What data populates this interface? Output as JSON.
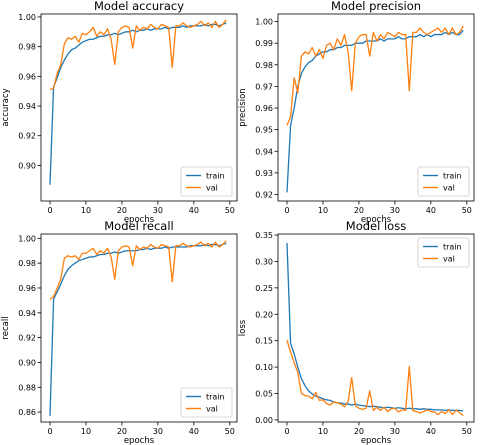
{
  "chart_data": [
    {
      "type": "line",
      "title": "Model accuracy",
      "xlabel": "epochs",
      "ylabel": "accuracy",
      "xlim": [
        -2.5,
        52
      ],
      "ylim": [
        0.876,
        1.002
      ],
      "xticks": [
        0,
        10,
        20,
        30,
        40,
        50
      ],
      "yticks": [
        0.9,
        0.92,
        0.94,
        0.96,
        0.98,
        1.0
      ],
      "ytick_labels": [
        "0.90",
        "0.92",
        "0.94",
        "0.96",
        "0.98",
        "1.00"
      ],
      "grid": false,
      "legend": "bottom-right",
      "x": [
        0,
        1,
        2,
        3,
        4,
        5,
        6,
        7,
        8,
        9,
        10,
        11,
        12,
        13,
        14,
        15,
        16,
        17,
        18,
        19,
        20,
        21,
        22,
        23,
        24,
        25,
        26,
        27,
        28,
        29,
        30,
        31,
        32,
        33,
        34,
        35,
        36,
        37,
        38,
        39,
        40,
        41,
        42,
        43,
        44,
        45,
        46,
        47,
        48,
        49
      ],
      "series": [
        {
          "name": "train",
          "color": "#1f77b4",
          "values": [
            0.887,
            0.953,
            0.959,
            0.966,
            0.971,
            0.975,
            0.978,
            0.979,
            0.981,
            0.983,
            0.984,
            0.985,
            0.985,
            0.986,
            0.987,
            0.987,
            0.988,
            0.988,
            0.989,
            0.988,
            0.989,
            0.99,
            0.99,
            0.991,
            0.99,
            0.991,
            0.991,
            0.992,
            0.991,
            0.992,
            0.992,
            0.992,
            0.993,
            0.992,
            0.993,
            0.993,
            0.993,
            0.994,
            0.993,
            0.994,
            0.994,
            0.994,
            0.994,
            0.995,
            0.994,
            0.995,
            0.995,
            0.994,
            0.995,
            0.996
          ]
        },
        {
          "name": "val",
          "color": "#ff7f0e",
          "values": [
            0.951,
            0.952,
            0.962,
            0.968,
            0.982,
            0.986,
            0.985,
            0.987,
            0.983,
            0.989,
            0.988,
            0.99,
            0.993,
            0.987,
            0.99,
            0.988,
            0.992,
            0.985,
            0.968,
            0.99,
            0.993,
            0.994,
            0.993,
            0.979,
            0.994,
            0.991,
            0.993,
            0.992,
            0.995,
            0.993,
            0.992,
            0.995,
            0.994,
            0.993,
            0.966,
            0.994,
            0.994,
            0.996,
            0.994,
            0.993,
            0.994,
            0.995,
            0.997,
            0.994,
            0.996,
            0.993,
            0.997,
            0.993,
            0.995,
            0.998
          ]
        }
      ]
    },
    {
      "type": "line",
      "title": "Model precision",
      "xlabel": "epochs",
      "ylabel": "precision",
      "xlim": [
        -2.5,
        52
      ],
      "ylim": [
        0.917,
        1.0035
      ],
      "xticks": [
        0,
        10,
        20,
        30,
        40,
        50
      ],
      "yticks": [
        0.92,
        0.93,
        0.94,
        0.95,
        0.96,
        0.97,
        0.98,
        0.99,
        1.0
      ],
      "ytick_labels": [
        "0.92",
        "0.93",
        "0.94",
        "0.95",
        "0.96",
        "0.97",
        "0.98",
        "0.99",
        "1.00"
      ],
      "grid": false,
      "legend": "bottom-right",
      "x": [
        0,
        1,
        2,
        3,
        4,
        5,
        6,
        7,
        8,
        9,
        10,
        11,
        12,
        13,
        14,
        15,
        16,
        17,
        18,
        19,
        20,
        21,
        22,
        23,
        24,
        25,
        26,
        27,
        28,
        29,
        30,
        31,
        32,
        33,
        34,
        35,
        36,
        37,
        38,
        39,
        40,
        41,
        42,
        43,
        44,
        45,
        46,
        47,
        48,
        49
      ],
      "series": [
        {
          "name": "train",
          "color": "#1f77b4",
          "values": [
            0.921,
            0.952,
            0.96,
            0.97,
            0.976,
            0.979,
            0.981,
            0.982,
            0.984,
            0.985,
            0.986,
            0.986,
            0.987,
            0.987,
            0.988,
            0.988,
            0.989,
            0.989,
            0.989,
            0.99,
            0.99,
            0.99,
            0.991,
            0.991,
            0.991,
            0.991,
            0.992,
            0.991,
            0.992,
            0.992,
            0.992,
            0.993,
            0.992,
            0.992,
            0.993,
            0.993,
            0.993,
            0.994,
            0.993,
            0.994,
            0.993,
            0.994,
            0.994,
            0.994,
            0.995,
            0.994,
            0.995,
            0.994,
            0.994,
            0.996
          ]
        },
        {
          "name": "val",
          "color": "#ff7f0e",
          "values": [
            0.952,
            0.956,
            0.974,
            0.967,
            0.984,
            0.986,
            0.985,
            0.988,
            0.984,
            0.987,
            0.983,
            0.989,
            0.99,
            0.987,
            0.992,
            0.989,
            0.994,
            0.986,
            0.968,
            0.99,
            0.993,
            0.994,
            0.994,
            0.984,
            0.995,
            0.991,
            0.994,
            0.992,
            0.995,
            0.994,
            0.993,
            0.995,
            0.994,
            0.994,
            0.968,
            0.995,
            0.995,
            0.997,
            0.995,
            0.994,
            0.995,
            0.996,
            0.997,
            0.995,
            0.997,
            0.994,
            0.997,
            0.994,
            0.995,
            0.998
          ]
        }
      ]
    },
    {
      "type": "line",
      "title": "Model recall",
      "xlabel": "epochs",
      "ylabel": "recall",
      "xlim": [
        -2.5,
        52
      ],
      "ylim": [
        0.852,
        1.0035
      ],
      "xticks": [
        0,
        10,
        20,
        30,
        40,
        50
      ],
      "yticks": [
        0.86,
        0.88,
        0.9,
        0.92,
        0.94,
        0.96,
        0.98,
        1.0
      ],
      "ytick_labels": [
        "0.86",
        "0.88",
        "0.90",
        "0.92",
        "0.94",
        "0.96",
        "0.98",
        "1.00"
      ],
      "grid": false,
      "legend": "bottom-right",
      "x": [
        0,
        1,
        2,
        3,
        4,
        5,
        6,
        7,
        8,
        9,
        10,
        11,
        12,
        13,
        14,
        15,
        16,
        17,
        18,
        19,
        20,
        21,
        22,
        23,
        24,
        25,
        26,
        27,
        28,
        29,
        30,
        31,
        32,
        33,
        34,
        35,
        36,
        37,
        38,
        39,
        40,
        41,
        42,
        43,
        44,
        45,
        46,
        47,
        48,
        49
      ],
      "series": [
        {
          "name": "train",
          "color": "#1f77b4",
          "values": [
            0.857,
            0.951,
            0.957,
            0.963,
            0.97,
            0.975,
            0.978,
            0.98,
            0.982,
            0.983,
            0.984,
            0.985,
            0.985,
            0.986,
            0.987,
            0.987,
            0.988,
            0.988,
            0.989,
            0.988,
            0.989,
            0.99,
            0.99,
            0.99,
            0.99,
            0.991,
            0.991,
            0.992,
            0.991,
            0.992,
            0.992,
            0.992,
            0.993,
            0.992,
            0.993,
            0.993,
            0.993,
            0.993,
            0.993,
            0.994,
            0.994,
            0.994,
            0.994,
            0.995,
            0.994,
            0.995,
            0.995,
            0.994,
            0.995,
            0.996
          ]
        },
        {
          "name": "val",
          "color": "#ff7f0e",
          "values": [
            0.951,
            0.953,
            0.96,
            0.967,
            0.984,
            0.986,
            0.985,
            0.986,
            0.983,
            0.988,
            0.988,
            0.99,
            0.992,
            0.987,
            0.99,
            0.988,
            0.992,
            0.985,
            0.967,
            0.99,
            0.993,
            0.994,
            0.993,
            0.978,
            0.994,
            0.991,
            0.993,
            0.992,
            0.995,
            0.993,
            0.992,
            0.995,
            0.994,
            0.993,
            0.965,
            0.994,
            0.994,
            0.996,
            0.994,
            0.993,
            0.994,
            0.995,
            0.997,
            0.994,
            0.996,
            0.993,
            0.997,
            0.993,
            0.995,
            0.998
          ]
        }
      ]
    },
    {
      "type": "line",
      "title": "Model loss",
      "xlabel": "epochs",
      "ylabel": "loss",
      "xlim": [
        -2.5,
        52
      ],
      "ylim": [
        -0.004,
        0.352
      ],
      "xticks": [
        0,
        10,
        20,
        30,
        40,
        50
      ],
      "yticks": [
        0.0,
        0.05,
        0.1,
        0.15,
        0.2,
        0.25,
        0.3,
        0.35
      ],
      "ytick_labels": [
        "0.00",
        "0.05",
        "0.10",
        "0.15",
        "0.20",
        "0.25",
        "0.30",
        "0.35"
      ],
      "grid": false,
      "legend": "top-right",
      "x": [
        0,
        1,
        2,
        3,
        4,
        5,
        6,
        7,
        8,
        9,
        10,
        11,
        12,
        13,
        14,
        15,
        16,
        17,
        18,
        19,
        20,
        21,
        22,
        23,
        24,
        25,
        26,
        27,
        28,
        29,
        30,
        31,
        32,
        33,
        34,
        35,
        36,
        37,
        38,
        39,
        40,
        41,
        42,
        43,
        44,
        45,
        46,
        47,
        48,
        49
      ],
      "series": [
        {
          "name": "train",
          "color": "#1f77b4",
          "values": [
            0.335,
            0.145,
            0.125,
            0.1,
            0.078,
            0.065,
            0.055,
            0.049,
            0.045,
            0.043,
            0.04,
            0.038,
            0.037,
            0.034,
            0.032,
            0.032,
            0.03,
            0.03,
            0.028,
            0.03,
            0.028,
            0.027,
            0.026,
            0.025,
            0.026,
            0.025,
            0.024,
            0.023,
            0.024,
            0.023,
            0.022,
            0.023,
            0.022,
            0.021,
            0.022,
            0.021,
            0.021,
            0.02,
            0.021,
            0.02,
            0.02,
            0.019,
            0.019,
            0.019,
            0.018,
            0.019,
            0.018,
            0.018,
            0.018,
            0.017
          ]
        },
        {
          "name": "val",
          "color": "#ff7f0e",
          "values": [
            0.151,
            0.128,
            0.108,
            0.09,
            0.05,
            0.046,
            0.045,
            0.04,
            0.052,
            0.037,
            0.038,
            0.031,
            0.028,
            0.034,
            0.032,
            0.03,
            0.025,
            0.035,
            0.08,
            0.027,
            0.022,
            0.02,
            0.022,
            0.055,
            0.018,
            0.024,
            0.018,
            0.024,
            0.016,
            0.021,
            0.022,
            0.015,
            0.019,
            0.018,
            0.101,
            0.017,
            0.016,
            0.013,
            0.016,
            0.019,
            0.016,
            0.015,
            0.01,
            0.016,
            0.012,
            0.019,
            0.01,
            0.018,
            0.014,
            0.008
          ]
        }
      ]
    }
  ]
}
